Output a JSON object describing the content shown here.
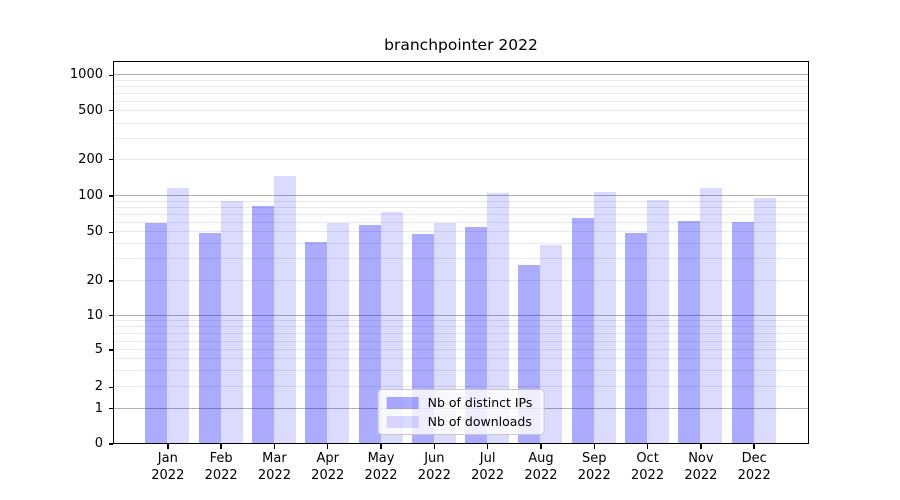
{
  "chart_data": {
    "type": "bar",
    "title": "branchpointer 2022",
    "categories": [
      "Jan",
      "Feb",
      "Mar",
      "Apr",
      "May",
      "Jun",
      "Jul",
      "Aug",
      "Sep",
      "Oct",
      "Nov",
      "Dec"
    ],
    "year_label": "2022",
    "series": [
      {
        "name": "Nb of distinct IPs",
        "color": "rgba(0,0,255,0.33)",
        "values": [
          60,
          50,
          83,
          42,
          58,
          49,
          56,
          27,
          66,
          50,
          63,
          62
        ]
      },
      {
        "name": "Nb of downloads",
        "color": "rgba(0,0,255,0.14)",
        "values": [
          118,
          91,
          148,
          60,
          74,
          60,
          107,
          40,
          110,
          93,
          117,
          98
        ]
      }
    ],
    "yscale": "symlog",
    "ytick_labels": [
      "1000",
      "500",
      "200",
      "100",
      "50",
      "20",
      "10",
      "5",
      "2",
      "1",
      "0"
    ],
    "ylim": [
      0,
      1300
    ],
    "grid": true,
    "legend_position": "lower center",
    "colors": {
      "major_grid": "#b0b0b0",
      "minor_grid": "#e9e9ec",
      "spine": "#000000",
      "bar_dark": "rgba(0,0,255,0.33)",
      "bar_light": "rgba(0,0,255,0.14)"
    }
  }
}
